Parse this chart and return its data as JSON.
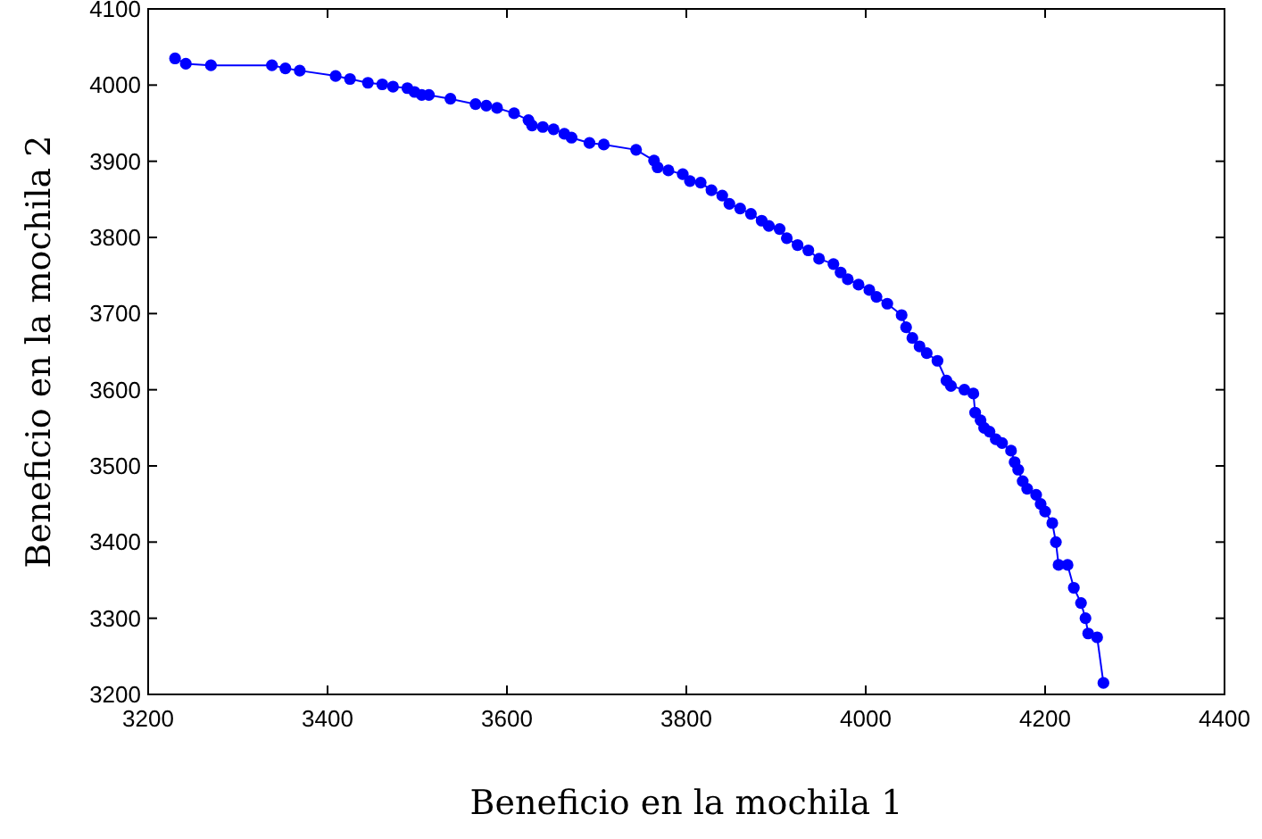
{
  "chart_data": {
    "type": "line",
    "xlabel": "Beneficio en la mochila 1",
    "ylabel": "Beneficio en la mochila 2",
    "xlim": [
      3200,
      4400
    ],
    "ylim": [
      3200,
      4100
    ],
    "xticks": [
      3200,
      3400,
      3600,
      3800,
      4000,
      4200,
      4400
    ],
    "yticks": [
      3200,
      3300,
      3400,
      3500,
      3600,
      3700,
      3800,
      3900,
      4000,
      4100
    ],
    "grid": false,
    "marker": "circle",
    "line_style": "solid",
    "series": [
      {
        "color": "#0000ff",
        "x": [
          3230,
          3242,
          3270,
          3338,
          3353,
          3369,
          3409,
          3425,
          3445,
          3461,
          3473,
          3489,
          3497,
          3505,
          3513,
          3537,
          3565,
          3577,
          3589,
          3608,
          3624,
          3628,
          3640,
          3652,
          3664,
          3672,
          3692,
          3708,
          3744,
          3764,
          3768,
          3780,
          3796,
          3804,
          3816,
          3828,
          3840,
          3848,
          3860,
          3872,
          3884,
          3892,
          3904,
          3912,
          3924,
          3936,
          3948,
          3964,
          3972,
          3980,
          3992,
          4004,
          4012,
          4024,
          4040,
          4045,
          4052,
          4060,
          4068,
          4080,
          4090,
          4095,
          4110,
          4120,
          4122,
          4128,
          4132,
          4138,
          4145,
          4152,
          4162,
          4166,
          4170,
          4175,
          4180,
          4190,
          4195,
          4200,
          4208,
          4212,
          4215,
          4225,
          4232,
          4240,
          4245,
          4248,
          4258,
          4265
        ],
        "values": [
          4035,
          4028,
          4026,
          4026,
          4022,
          4019,
          4012,
          4008,
          4003,
          4001,
          3998,
          3996,
          3991,
          3987,
          3987,
          3982,
          3975,
          3973,
          3970,
          3963,
          3954,
          3947,
          3945,
          3942,
          3936,
          3931,
          3924,
          3922,
          3915,
          3901,
          3892,
          3888,
          3883,
          3874,
          3872,
          3862,
          3855,
          3844,
          3838,
          3831,
          3822,
          3815,
          3811,
          3799,
          3790,
          3783,
          3772,
          3765,
          3754,
          3745,
          3738,
          3731,
          3722,
          3713,
          3698,
          3682,
          3668,
          3657,
          3648,
          3638,
          3612,
          3605,
          3600,
          3595,
          3570,
          3560,
          3550,
          3545,
          3535,
          3530,
          3520,
          3505,
          3495,
          3480,
          3470,
          3462,
          3450,
          3440,
          3425,
          3400,
          3370,
          3370,
          3340,
          3320,
          3300,
          3280,
          3275,
          3215
        ]
      }
    ]
  }
}
